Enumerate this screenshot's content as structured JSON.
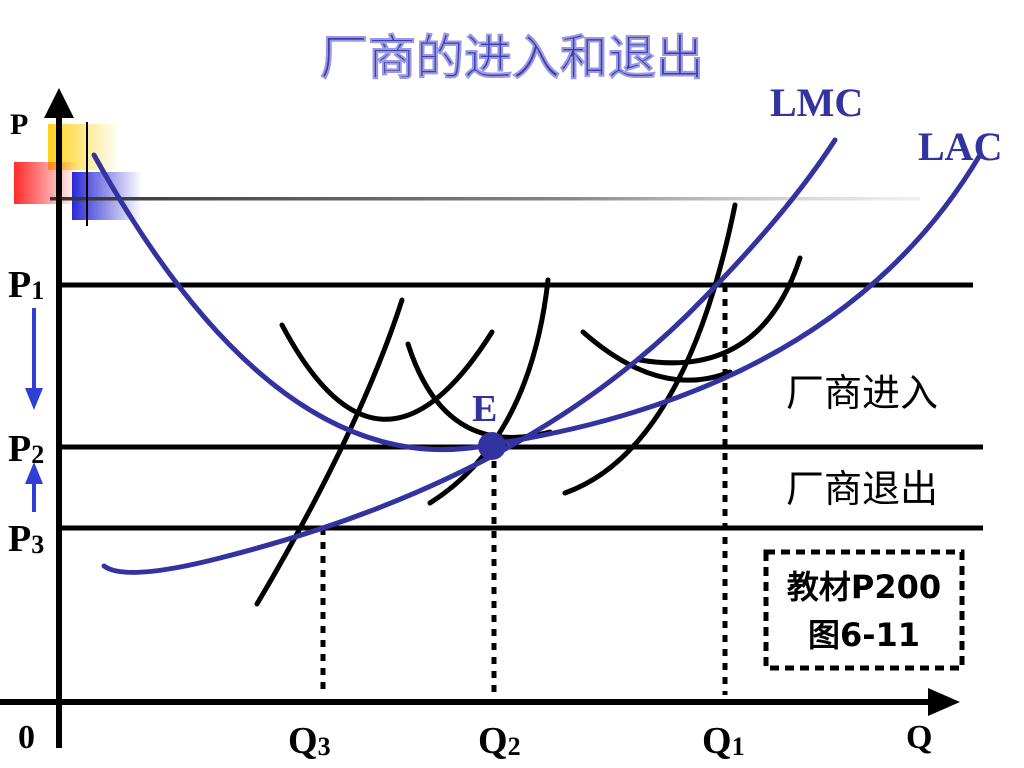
{
  "title": "厂商的进入和退出",
  "axes": {
    "y_label": "P",
    "x_label": "Q",
    "origin_label": "0"
  },
  "price_levels": [
    {
      "main": "P",
      "sub": "1"
    },
    {
      "main": "P",
      "sub": "2"
    },
    {
      "main": "P",
      "sub": "3"
    }
  ],
  "quantity_levels": [
    {
      "main": "Q",
      "sub": "3"
    },
    {
      "main": "Q",
      "sub": "2"
    },
    {
      "main": "Q",
      "sub": "1"
    }
  ],
  "curves": {
    "lmc": "LMC",
    "lac": "LAC"
  },
  "equilibrium_label": "E",
  "annotations": {
    "entry": "厂商进入",
    "exit": "厂商退出"
  },
  "reference": {
    "line1": "教材P200",
    "line2": "图6-11"
  },
  "colors": {
    "title": "#3d3db0",
    "curve_blue": "#3333a0",
    "arrow_blue": "#2f3fd6",
    "line_black": "#000000"
  }
}
